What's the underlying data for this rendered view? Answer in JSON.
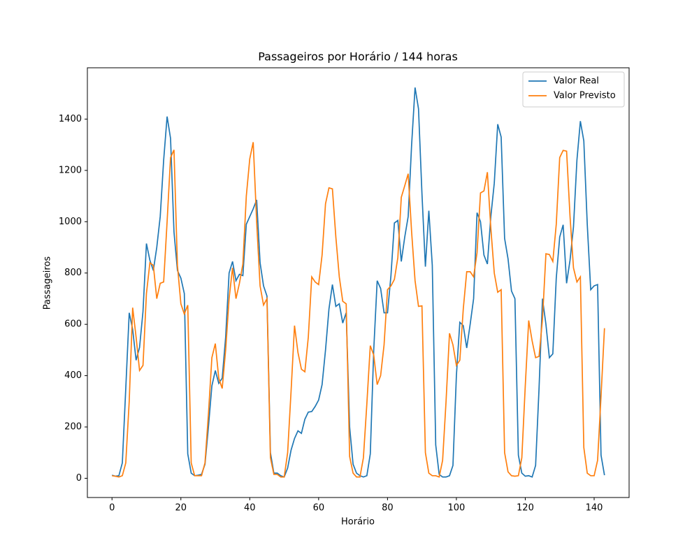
{
  "chart_data": {
    "type": "line",
    "title": "Passageiros por Horário / 144 horas",
    "xlabel": "Horário",
    "ylabel": "Passageiros",
    "x": [
      0,
      1,
      2,
      3,
      4,
      5,
      6,
      7,
      8,
      9,
      10,
      11,
      12,
      13,
      14,
      15,
      16,
      17,
      18,
      19,
      20,
      21,
      22,
      23,
      24,
      25,
      26,
      27,
      28,
      29,
      30,
      31,
      32,
      33,
      34,
      35,
      36,
      37,
      38,
      39,
      40,
      41,
      42,
      43,
      44,
      45,
      46,
      47,
      48,
      49,
      50,
      51,
      52,
      53,
      54,
      55,
      56,
      57,
      58,
      59,
      60,
      61,
      62,
      63,
      64,
      65,
      66,
      67,
      68,
      69,
      70,
      71,
      72,
      73,
      74,
      75,
      76,
      77,
      78,
      79,
      80,
      81,
      82,
      83,
      84,
      85,
      86,
      87,
      88,
      89,
      90,
      91,
      92,
      93,
      94,
      95,
      96,
      97,
      98,
      99,
      100,
      101,
      102,
      103,
      104,
      105,
      106,
      107,
      108,
      109,
      110,
      111,
      112,
      113,
      114,
      115,
      116,
      117,
      118,
      119,
      120,
      121,
      122,
      123,
      124,
      125,
      126,
      127,
      128,
      129,
      130,
      131,
      132,
      133,
      134,
      135,
      136,
      137,
      138,
      139,
      140,
      141,
      142,
      143
    ],
    "series": [
      {
        "name": "Valor Real",
        "color": "#1f77b4",
        "values": [
          12,
          8,
          10,
          60,
          350,
          645,
          580,
          460,
          510,
          650,
          915,
          850,
          810,
          900,
          1020,
          1240,
          1410,
          1325,
          960,
          810,
          780,
          720,
          95,
          20,
          10,
          12,
          15,
          55,
          200,
          360,
          420,
          370,
          390,
          550,
          800,
          845,
          770,
          795,
          790,
          990,
          1020,
          1050,
          1085,
          840,
          750,
          710,
          100,
          20,
          20,
          10,
          5,
          40,
          110,
          155,
          185,
          175,
          230,
          258,
          260,
          280,
          305,
          365,
          500,
          660,
          755,
          670,
          680,
          605,
          645,
          200,
          55,
          20,
          10,
          5,
          10,
          95,
          500,
          770,
          740,
          645,
          645,
          790,
          995,
          1005,
          845,
          940,
          1020,
          1300,
          1523,
          1440,
          1110,
          825,
          1043,
          830,
          130,
          15,
          5,
          5,
          10,
          50,
          400,
          608,
          595,
          508,
          600,
          700,
          1035,
          1000,
          870,
          835,
          1020,
          1150,
          1380,
          1330,
          935,
          855,
          730,
          700,
          90,
          20,
          8,
          10,
          5,
          50,
          350,
          700,
          600,
          470,
          485,
          780,
          940,
          988,
          760,
          850,
          980,
          1240,
          1392,
          1315,
          990,
          735,
          750,
          755,
          90,
          12
        ]
      },
      {
        "name": "Valor Previsto",
        "color": "#ff7f0e",
        "values": [
          10,
          8,
          5,
          10,
          60,
          300,
          665,
          550,
          420,
          440,
          720,
          840,
          830,
          700,
          760,
          765,
          1000,
          1250,
          1280,
          830,
          680,
          640,
          675,
          60,
          10,
          10,
          10,
          60,
          250,
          470,
          525,
          390,
          350,
          500,
          700,
          820,
          700,
          760,
          835,
          1100,
          1245,
          1310,
          1000,
          750,
          675,
          700,
          80,
          15,
          15,
          5,
          5,
          100,
          340,
          595,
          490,
          425,
          415,
          550,
          785,
          765,
          755,
          870,
          1070,
          1132,
          1128,
          940,
          785,
          690,
          680,
          85,
          20,
          5,
          5,
          80,
          290,
          517,
          480,
          365,
          400,
          520,
          735,
          750,
          775,
          860,
          1095,
          1140,
          1187,
          960,
          770,
          670,
          672,
          100,
          20,
          10,
          10,
          5,
          70,
          300,
          565,
          520,
          440,
          460,
          660,
          805,
          805,
          785,
          880,
          1112,
          1120,
          1193,
          975,
          800,
          725,
          735,
          100,
          25,
          10,
          8,
          10,
          80,
          360,
          615,
          535,
          470,
          475,
          620,
          875,
          872,
          845,
          990,
          1250,
          1278,
          1275,
          1020,
          820,
          765,
          785,
          120,
          20,
          10,
          10,
          70,
          320,
          585
        ]
      }
    ],
    "xlim": [
      -7.15,
      150.15
    ],
    "ylim": [
      -75,
      1600
    ],
    "xticks": [
      0,
      20,
      40,
      60,
      80,
      100,
      120,
      140
    ],
    "yticks": [
      0,
      200,
      400,
      600,
      800,
      1000,
      1200,
      1400
    ],
    "legend": "upper right",
    "grid": false
  }
}
